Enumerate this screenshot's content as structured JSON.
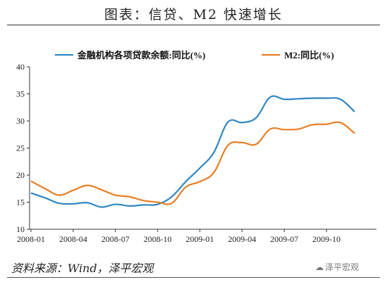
{
  "title": "图表：信贷、M2 快速增长",
  "source": "资料来源：Wind，泽平宏观",
  "watermark": "泽平宏观",
  "colors": {
    "series1": "#2E86C1",
    "series2": "#E67E22",
    "axis": "#333333"
  },
  "chart_data": {
    "type": "line",
    "title": "图表：信贷、M2 快速增长",
    "xlabel": "",
    "ylabel": "",
    "ylim": [
      10,
      40
    ],
    "yticks": [
      10,
      15,
      20,
      25,
      30,
      35,
      40
    ],
    "xticks": [
      "2008-01",
      "2008-04",
      "2008-07",
      "2008-10",
      "2009-01",
      "2009-04",
      "2009-07",
      "2009-10"
    ],
    "x": [
      "2008-01",
      "2008-02",
      "2008-03",
      "2008-04",
      "2008-05",
      "2008-06",
      "2008-07",
      "2008-08",
      "2008-09",
      "2008-10",
      "2008-11",
      "2008-12",
      "2009-01",
      "2009-02",
      "2009-03",
      "2009-04",
      "2009-05",
      "2009-06",
      "2009-07",
      "2009-08",
      "2009-09",
      "2009-10",
      "2009-11",
      "2009-12"
    ],
    "grid": false,
    "legend_position": "top",
    "series": [
      {
        "name": "金融机构各项贷款余额:同比(%)",
        "color": "#2E86C1",
        "values": [
          16.7,
          15.8,
          14.8,
          14.7,
          14.9,
          14.1,
          14.6,
          14.3,
          14.5,
          14.6,
          16.0,
          18.8,
          21.3,
          24.2,
          29.8,
          29.7,
          30.6,
          34.4,
          34.0,
          34.1,
          34.2,
          34.2,
          34.0,
          31.7
        ]
      },
      {
        "name": "M2:同比(%)",
        "color": "#E67E22",
        "values": [
          18.9,
          17.5,
          16.3,
          17.2,
          18.1,
          17.3,
          16.3,
          16.0,
          15.3,
          15.0,
          14.8,
          17.8,
          18.8,
          20.5,
          25.5,
          26.0,
          25.7,
          28.5,
          28.4,
          28.5,
          29.3,
          29.4,
          29.7,
          27.7
        ]
      }
    ]
  }
}
